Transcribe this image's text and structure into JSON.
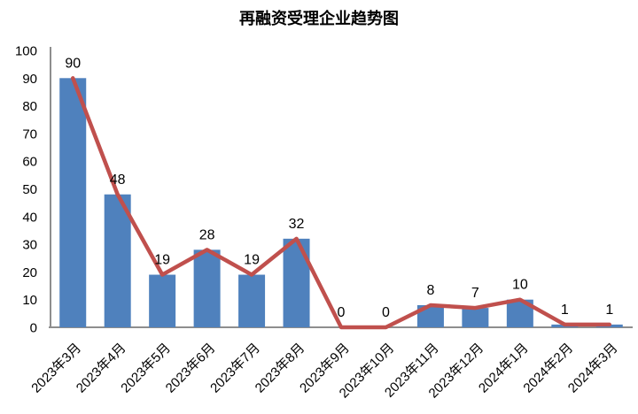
{
  "chart_data": {
    "type": "bar",
    "overlay": "line",
    "title": "再融资受理企业趋势图",
    "categories": [
      "2023年3月",
      "2023年4月",
      "2023年5月",
      "2023年6月",
      "2023年7月",
      "2023年8月",
      "2023年9月",
      "2023年10月",
      "2023年11月",
      "2023年12月",
      "2024年1月",
      "2024年2月",
      "2024年3月"
    ],
    "series": [
      {
        "name": "bar-series",
        "type": "bar",
        "values": [
          90,
          48,
          19,
          28,
          19,
          32,
          0,
          0,
          8,
          7,
          10,
          1,
          1
        ],
        "color": "#4F81BD"
      },
      {
        "name": "line-series",
        "type": "line",
        "values": [
          90,
          48,
          19,
          28,
          19,
          32,
          0,
          0,
          8,
          7,
          10,
          1,
          1
        ],
        "color": "#C0504D"
      }
    ],
    "data_labels": [
      90,
      48,
      19,
      28,
      19,
      32,
      0,
      0,
      8,
      7,
      10,
      1,
      1
    ],
    "xlabel": "",
    "ylabel": "",
    "ylim": [
      0,
      100
    ],
    "ytick_step": 10,
    "yticks": [
      0,
      10,
      20,
      30,
      40,
      50,
      60,
      70,
      80,
      90,
      100
    ],
    "x_label_rotation_deg": 45,
    "grid": false,
    "legend_position": "none",
    "axis_color": "#8E8E8E",
    "text_color": "#000000",
    "background_color": "#FFFFFF"
  }
}
